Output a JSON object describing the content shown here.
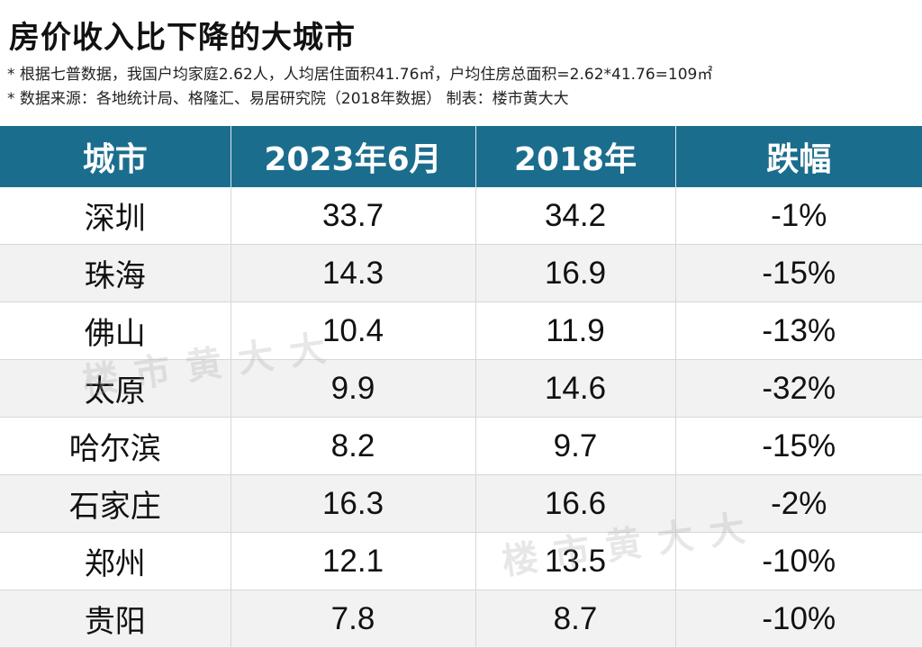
{
  "title": "房价收入比下降的大城市",
  "notes": [
    "* 根据七普数据，我国户均家庭2.62人，人均居住面积41.76㎡，户均住房总面积=2.62*41.76=109㎡",
    "* 数据来源：各地统计局、格隆汇、易居研究院（2018年数据） 制表：楼市黄大大"
  ],
  "watermark": "楼市黄大大",
  "colors": {
    "header_bg": "#1b6d8e",
    "stripe": "#f2f2f2"
  },
  "chart_data": {
    "type": "table",
    "title": "房价收入比下降的大城市",
    "columns": [
      "城市",
      "2023年6月",
      "2018年",
      "跌幅"
    ],
    "rows": [
      [
        "深圳",
        "33.7",
        "34.2",
        "-1%"
      ],
      [
        "珠海",
        "14.3",
        "16.9",
        "-15%"
      ],
      [
        "佛山",
        "10.4",
        "11.9",
        "-13%"
      ],
      [
        "太原",
        "9.9",
        "14.6",
        "-32%"
      ],
      [
        "哈尔滨",
        "8.2",
        "9.7",
        "-15%"
      ],
      [
        "石家庄",
        "16.3",
        "16.6",
        "-2%"
      ],
      [
        "郑州",
        "12.1",
        "13.5",
        "-10%"
      ],
      [
        "贵阳",
        "7.8",
        "8.7",
        "-10%"
      ]
    ]
  }
}
